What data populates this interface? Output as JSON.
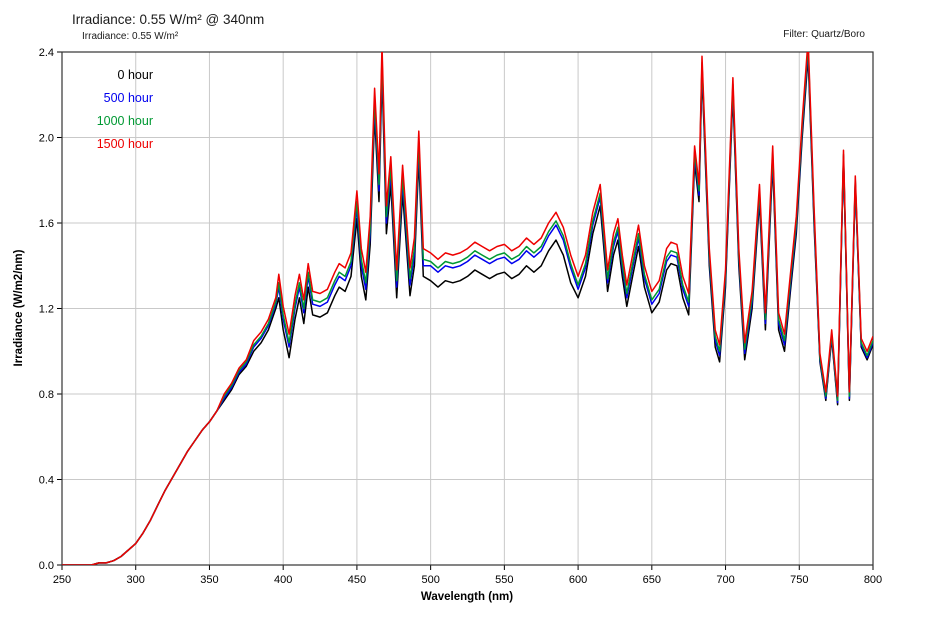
{
  "header": {
    "title": "Irradiance: 0.55 W/m² @ 340nm",
    "subtitle": "Irradiance: 0.55 W/m²",
    "filter_note": "Filter: Quartz/Boro"
  },
  "chart_data": {
    "type": "line",
    "title": "Irradiance: 0.55 W/m² @ 340nm",
    "xlabel": "Wavelength (nm)",
    "ylabel": "Irradiance (W/m2/nm)",
    "xlim": [
      250,
      800
    ],
    "ylim": [
      0,
      2.4
    ],
    "xticks": [
      250,
      300,
      350,
      400,
      450,
      500,
      550,
      600,
      650,
      700,
      750,
      800
    ],
    "yticks": [
      0.0,
      0.4,
      0.8,
      1.2,
      1.6,
      2.0,
      2.4
    ],
    "grid": true,
    "legend_position": "top-left-inside",
    "grid_color": "#c9c9c9",
    "border_color": "#333333",
    "x": [
      250,
      255,
      260,
      265,
      270,
      275,
      280,
      285,
      290,
      295,
      300,
      305,
      310,
      315,
      320,
      325,
      330,
      335,
      340,
      345,
      350,
      355,
      360,
      365,
      370,
      375,
      380,
      385,
      390,
      395,
      397,
      400,
      404,
      408,
      411,
      414,
      417,
      420,
      425,
      430,
      435,
      438,
      442,
      446,
      450,
      453,
      456,
      459,
      462,
      465,
      467,
      470,
      473,
      477,
      481,
      486,
      489,
      492,
      495,
      500,
      505,
      510,
      515,
      520,
      525,
      530,
      535,
      540,
      545,
      550,
      555,
      560,
      565,
      570,
      575,
      580,
      585,
      590,
      595,
      600,
      605,
      610,
      615,
      620,
      624,
      627,
      630,
      633,
      637,
      641,
      645,
      650,
      655,
      660,
      663,
      667,
      671,
      675,
      679,
      682,
      684,
      689,
      693,
      696,
      700,
      705,
      709,
      713,
      718,
      723,
      727,
      732,
      736,
      740,
      744,
      748,
      752,
      756,
      760,
      764,
      768,
      772,
      776,
      780,
      784,
      788,
      792,
      796,
      800
    ],
    "series": [
      {
        "name": "0 hour",
        "color": "#000000",
        "values": [
          0,
          0,
          0,
          0,
          0,
          0.01,
          0.01,
          0.02,
          0.04,
          0.07,
          0.1,
          0.15,
          0.21,
          0.28,
          0.35,
          0.41,
          0.47,
          0.53,
          0.58,
          0.63,
          0.67,
          0.72,
          0.77,
          0.82,
          0.89,
          0.93,
          1.0,
          1.04,
          1.1,
          1.2,
          1.25,
          1.1,
          0.97,
          1.15,
          1.25,
          1.13,
          1.3,
          1.17,
          1.16,
          1.18,
          1.26,
          1.3,
          1.28,
          1.35,
          1.62,
          1.35,
          1.24,
          1.5,
          2.1,
          1.7,
          2.3,
          1.55,
          1.78,
          1.25,
          1.74,
          1.26,
          1.4,
          1.9,
          1.35,
          1.33,
          1.3,
          1.33,
          1.32,
          1.33,
          1.35,
          1.38,
          1.36,
          1.34,
          1.36,
          1.37,
          1.34,
          1.36,
          1.4,
          1.37,
          1.4,
          1.47,
          1.52,
          1.45,
          1.32,
          1.25,
          1.35,
          1.55,
          1.68,
          1.28,
          1.45,
          1.52,
          1.35,
          1.21,
          1.35,
          1.49,
          1.3,
          1.18,
          1.23,
          1.38,
          1.41,
          1.4,
          1.25,
          1.17,
          1.88,
          1.7,
          2.3,
          1.4,
          1.02,
          0.95,
          1.3,
          2.2,
          1.4,
          0.96,
          1.2,
          1.7,
          1.1,
          1.88,
          1.1,
          1.0,
          1.28,
          1.55,
          2.0,
          2.38,
          1.6,
          0.95,
          0.77,
          1.06,
          0.75,
          1.9,
          0.77,
          1.78,
          1.02,
          0.96,
          1.03
        ]
      },
      {
        "name": "500 hour",
        "color": "#0000ee",
        "values": [
          0,
          0,
          0,
          0,
          0,
          0.01,
          0.01,
          0.02,
          0.04,
          0.07,
          0.1,
          0.15,
          0.21,
          0.28,
          0.35,
          0.41,
          0.47,
          0.53,
          0.58,
          0.63,
          0.67,
          0.72,
          0.78,
          0.83,
          0.9,
          0.94,
          1.02,
          1.06,
          1.12,
          1.22,
          1.3,
          1.15,
          1.02,
          1.2,
          1.3,
          1.18,
          1.35,
          1.22,
          1.21,
          1.23,
          1.31,
          1.35,
          1.33,
          1.4,
          1.67,
          1.4,
          1.29,
          1.55,
          2.15,
          1.75,
          2.35,
          1.6,
          1.83,
          1.3,
          1.79,
          1.31,
          1.45,
          1.95,
          1.4,
          1.4,
          1.37,
          1.4,
          1.39,
          1.4,
          1.42,
          1.45,
          1.43,
          1.41,
          1.43,
          1.44,
          1.41,
          1.43,
          1.47,
          1.44,
          1.47,
          1.54,
          1.59,
          1.52,
          1.39,
          1.29,
          1.39,
          1.59,
          1.72,
          1.32,
          1.49,
          1.56,
          1.39,
          1.25,
          1.39,
          1.53,
          1.34,
          1.22,
          1.27,
          1.42,
          1.45,
          1.44,
          1.29,
          1.21,
          1.91,
          1.73,
          2.33,
          1.43,
          1.05,
          0.98,
          1.33,
          2.23,
          1.43,
          0.99,
          1.23,
          1.73,
          1.13,
          1.91,
          1.13,
          1.03,
          1.31,
          1.58,
          2.03,
          2.41,
          1.63,
          0.96,
          0.78,
          1.07,
          0.76,
          1.91,
          0.78,
          1.79,
          1.03,
          0.97,
          1.04
        ]
      },
      {
        "name": "1000 hour",
        "color": "#009933",
        "values": [
          0,
          0,
          0,
          0,
          0,
          0.01,
          0.01,
          0.02,
          0.04,
          0.07,
          0.1,
          0.15,
          0.21,
          0.28,
          0.35,
          0.41,
          0.47,
          0.53,
          0.58,
          0.63,
          0.67,
          0.72,
          0.79,
          0.84,
          0.91,
          0.95,
          1.03,
          1.07,
          1.13,
          1.23,
          1.32,
          1.17,
          1.04,
          1.22,
          1.32,
          1.2,
          1.37,
          1.24,
          1.23,
          1.25,
          1.33,
          1.37,
          1.35,
          1.42,
          1.7,
          1.43,
          1.32,
          1.58,
          2.18,
          1.78,
          2.38,
          1.63,
          1.86,
          1.33,
          1.82,
          1.34,
          1.48,
          1.98,
          1.43,
          1.42,
          1.39,
          1.42,
          1.41,
          1.42,
          1.44,
          1.47,
          1.45,
          1.43,
          1.45,
          1.46,
          1.43,
          1.45,
          1.49,
          1.46,
          1.49,
          1.56,
          1.61,
          1.54,
          1.41,
          1.31,
          1.41,
          1.61,
          1.74,
          1.34,
          1.51,
          1.58,
          1.41,
          1.27,
          1.41,
          1.55,
          1.36,
          1.24,
          1.29,
          1.44,
          1.47,
          1.46,
          1.31,
          1.23,
          1.93,
          1.75,
          2.35,
          1.45,
          1.07,
          1.0,
          1.35,
          2.25,
          1.45,
          1.01,
          1.25,
          1.75,
          1.15,
          1.93,
          1.15,
          1.05,
          1.33,
          1.6,
          2.05,
          2.43,
          1.65,
          0.97,
          0.79,
          1.08,
          0.77,
          1.92,
          0.79,
          1.8,
          1.04,
          0.98,
          1.05
        ]
      },
      {
        "name": "1500 hour",
        "color": "#ee0000",
        "values": [
          0,
          0,
          0,
          0,
          0,
          0.01,
          0.01,
          0.02,
          0.04,
          0.07,
          0.1,
          0.15,
          0.21,
          0.28,
          0.35,
          0.41,
          0.47,
          0.53,
          0.58,
          0.63,
          0.67,
          0.72,
          0.8,
          0.85,
          0.92,
          0.96,
          1.05,
          1.09,
          1.15,
          1.25,
          1.36,
          1.21,
          1.08,
          1.26,
          1.36,
          1.24,
          1.41,
          1.28,
          1.27,
          1.29,
          1.37,
          1.41,
          1.39,
          1.46,
          1.75,
          1.48,
          1.37,
          1.63,
          2.23,
          1.83,
          2.43,
          1.68,
          1.91,
          1.38,
          1.87,
          1.39,
          1.53,
          2.03,
          1.48,
          1.46,
          1.43,
          1.46,
          1.45,
          1.46,
          1.48,
          1.51,
          1.49,
          1.47,
          1.49,
          1.5,
          1.47,
          1.49,
          1.53,
          1.5,
          1.53,
          1.6,
          1.65,
          1.58,
          1.45,
          1.35,
          1.45,
          1.65,
          1.78,
          1.38,
          1.55,
          1.62,
          1.45,
          1.31,
          1.45,
          1.59,
          1.4,
          1.28,
          1.33,
          1.48,
          1.51,
          1.5,
          1.35,
          1.27,
          1.96,
          1.78,
          2.38,
          1.48,
          1.1,
          1.03,
          1.38,
          2.28,
          1.48,
          1.04,
          1.28,
          1.78,
          1.18,
          1.96,
          1.18,
          1.08,
          1.36,
          1.63,
          2.08,
          2.46,
          1.68,
          0.99,
          0.81,
          1.1,
          0.79,
          1.94,
          0.81,
          1.82,
          1.06,
          1.0,
          1.07
        ]
      }
    ]
  }
}
